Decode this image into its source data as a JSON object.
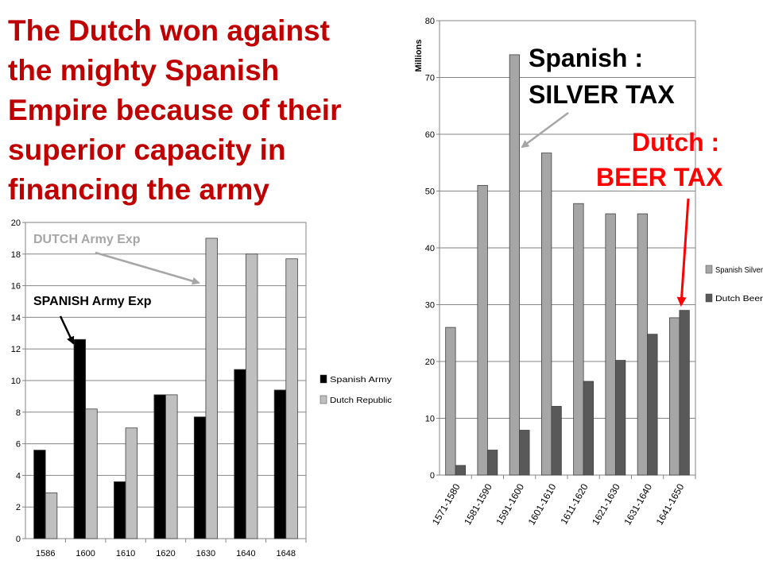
{
  "title_lines": [
    "The Dutch won against",
    "the mighty Spanish",
    "Empire because of their",
    "superior capacity in",
    "financing the army"
  ],
  "annotations": {
    "dutch_army": "DUTCH Army Exp",
    "spanish_army": "SPANISH Army Exp",
    "spanish_tax_1": "Spanish :",
    "spanish_tax_2": "SILVER TAX",
    "dutch_tax_1": "Dutch :",
    "dutch_tax_2": "BEER TAX"
  },
  "colors": {
    "title": "#c00000",
    "annotation_red": "#ff0000",
    "annotation_gray": "#a6a6a6",
    "spanish_army": "#000000",
    "dutch_republic": "#bfbfbf",
    "spanish_silver": "#a6a6a6",
    "dutch_beer": "#595959"
  },
  "chart_data": [
    {
      "type": "bar",
      "categories": [
        "1586",
        "1600",
        "1610",
        "1620",
        "1630",
        "1640",
        "1648"
      ],
      "series": [
        {
          "name": "Spanish Army",
          "values": [
            5.6,
            12.6,
            3.6,
            9.1,
            7.7,
            10.7,
            9.4
          ]
        },
        {
          "name": "Dutch Republic",
          "values": [
            2.9,
            8.2,
            7.0,
            9.1,
            19.0,
            18.0,
            17.7
          ]
        }
      ],
      "ylim": [
        0,
        20
      ],
      "yticks": [
        "0",
        "2",
        "4",
        "6",
        "8",
        "10",
        "12",
        "14",
        "16",
        "18",
        "20"
      ],
      "grid": true,
      "legend": "right"
    },
    {
      "type": "bar",
      "categories": [
        "1571-1580",
        "1581-1590",
        "1591-1600",
        "1601-1610",
        "1611-1620",
        "1621-1630",
        "1631-1640",
        "1641-1650"
      ],
      "series": [
        {
          "name": "Spanish Silver",
          "values": [
            26,
            51,
            74,
            56.7,
            47.8,
            46,
            46,
            27.7
          ]
        },
        {
          "name": "Dutch Beer",
          "values": [
            1.7,
            4.4,
            7.9,
            12.1,
            16.5,
            20.2,
            24.8,
            29
          ]
        }
      ],
      "ylabel": "Millions",
      "ylim": [
        0,
        80
      ],
      "yticks": [
        "0",
        "10",
        "20",
        "30",
        "40",
        "50",
        "60",
        "70",
        "80"
      ],
      "grid": true,
      "legend": "right"
    }
  ]
}
